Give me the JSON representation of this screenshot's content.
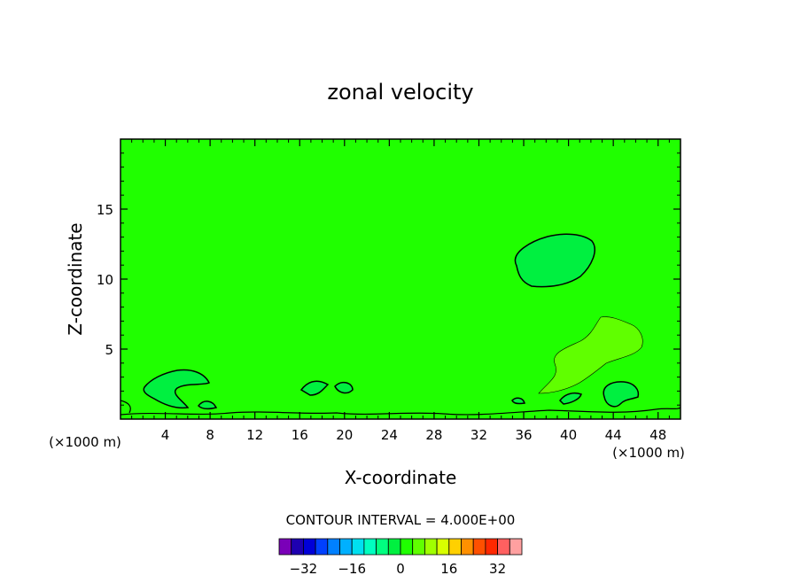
{
  "chart_data": {
    "type": "contour",
    "title": "zonal velocity",
    "xlabel": "X-coordinate",
    "ylabel": "Z-coordinate",
    "x_unit_label": "(×1000 m)",
    "x_unit_label_right": "(×1000 m)",
    "xlim": [
      0,
      50
    ],
    "ylim": [
      0,
      20
    ],
    "x_ticks": [
      4,
      8,
      12,
      16,
      20,
      24,
      28,
      32,
      36,
      40,
      44,
      48
    ],
    "y_ticks": [
      5,
      10,
      15
    ],
    "contour_interval_label": "CONTOUR INTERVAL = 4.000E+00",
    "background_level": 0,
    "colorbar": {
      "levels": [
        -36,
        -32,
        -28,
        -24,
        -20,
        -16,
        -12,
        -8,
        -4,
        0,
        4,
        8,
        12,
        16,
        20,
        24,
        28,
        32,
        36
      ],
      "colors": [
        "#7a00b8",
        "#1e00b0",
        "#0000d8",
        "#0040ff",
        "#0080ff",
        "#00b0ff",
        "#00e0f0",
        "#00ffc0",
        "#00ff80",
        "#00f040",
        "#20ff00",
        "#60ff00",
        "#a0ff00",
        "#d8ff00",
        "#ffd000",
        "#ff9000",
        "#ff5000",
        "#ff2800",
        "#ff6060",
        "#ffa0a0"
      ],
      "tick_labels": [
        "-32",
        "-16",
        "0",
        "16",
        "32"
      ],
      "tick_values": [
        -32,
        -16,
        0,
        16,
        32
      ]
    },
    "regions": [
      {
        "name": "upper-negative-cell",
        "level": -4,
        "color": "#00ff80",
        "center_x": 40,
        "center_z": 11.5
      },
      {
        "name": "left-negative-cell",
        "level": -4,
        "color": "#00ff80",
        "center_x": 5,
        "center_z": 2.5
      },
      {
        "name": "lower-positive-tongue",
        "level": 4,
        "color": "#60ff00",
        "center_x": 42,
        "center_z": 5
      },
      {
        "name": "right-negative-cell",
        "level": -4,
        "color": "#00ff80",
        "center_x": 44,
        "center_z": 2
      }
    ]
  }
}
